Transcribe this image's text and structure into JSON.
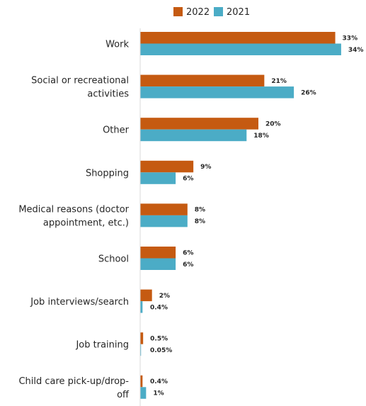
{
  "chart_data": {
    "type": "bar",
    "orientation": "horizontal",
    "categories": [
      [
        "Work"
      ],
      [
        "Social or recreational",
        "activities"
      ],
      [
        "Other"
      ],
      [
        "Shopping"
      ],
      [
        "Medical reasons (doctor",
        "appointment, etc.)"
      ],
      [
        "School"
      ],
      [
        "Job interviews/search"
      ],
      [
        "Job training"
      ],
      [
        "Child care pick-up/drop-",
        "off"
      ]
    ],
    "series": [
      {
        "name": "2022",
        "color": "#C55A11",
        "values": [
          33,
          21,
          20,
          9,
          8,
          6,
          2,
          0.5,
          0.4
        ],
        "labels": [
          "33%",
          "21%",
          "20%",
          "9%",
          "8%",
          "6%",
          "2%",
          "0.5%",
          "0.4%"
        ]
      },
      {
        "name": "2021",
        "color": "#4BACC6",
        "values": [
          34,
          26,
          18,
          6,
          8,
          6,
          0.4,
          0.05,
          1
        ],
        "labels": [
          "34%",
          "26%",
          "18%",
          "6%",
          "8%",
          "6%",
          "0.4%",
          "0.05%",
          "1%"
        ]
      }
    ],
    "xlim": [
      0,
      40
    ],
    "legend": "top",
    "grid": false
  }
}
